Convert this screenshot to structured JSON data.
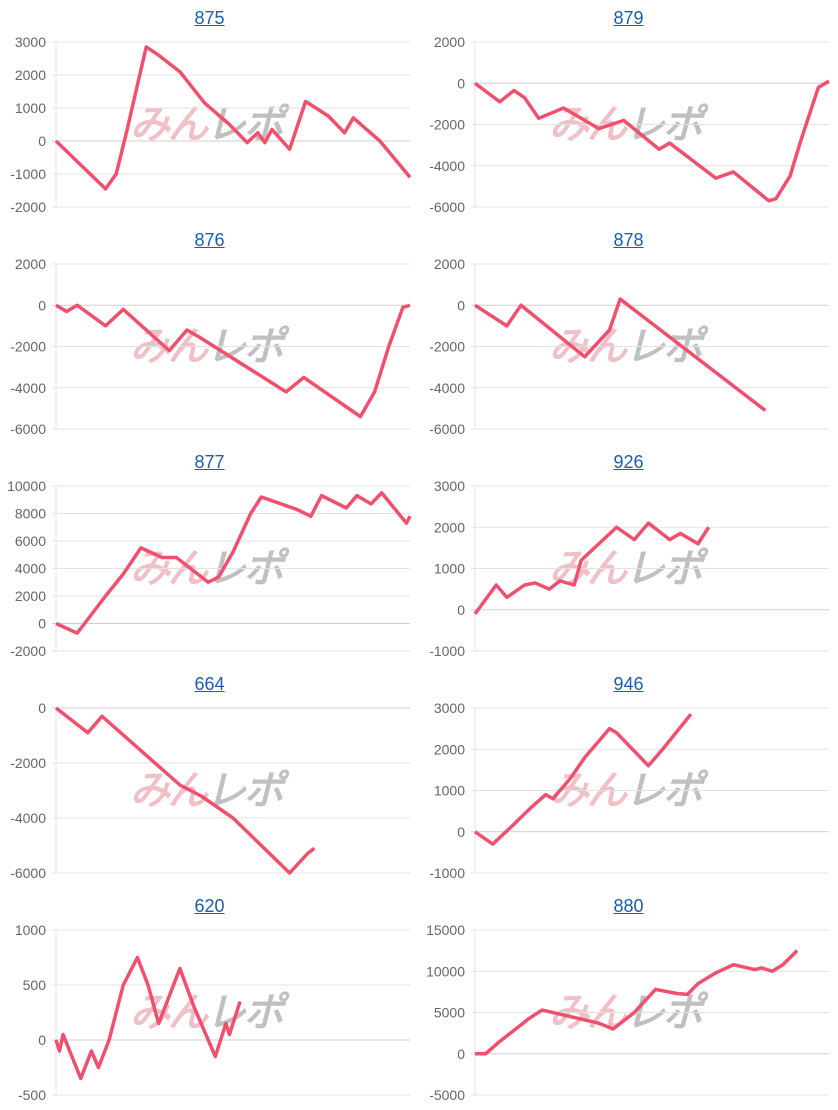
{
  "watermark": {
    "part1": "みん",
    "part2": "レポ"
  },
  "colors": {
    "line": "#f0506e",
    "title": "#1a5fa8",
    "grid": "#e3e3e3",
    "tick": "#666666"
  },
  "chart_data": [
    {
      "type": "line",
      "title": "875",
      "ylim": [
        -2000,
        3000
      ],
      "yticks": [
        3000,
        2000,
        1000,
        0,
        -1000,
        -2000
      ],
      "xlim": [
        0,
        100
      ],
      "grid": true,
      "x": [
        0,
        14,
        17,
        20,
        23,
        25.5,
        29,
        35,
        42,
        49,
        54,
        57,
        59,
        61,
        66,
        70.5,
        77,
        81.5,
        84,
        91.5,
        100
      ],
      "y": [
        0,
        -1450,
        -1000,
        300,
        1700,
        2850,
        2600,
        2100,
        1150,
        500,
        -50,
        250,
        -50,
        350,
        -250,
        1200,
        750,
        250,
        700,
        0,
        -1100
      ]
    },
    {
      "type": "line",
      "title": "879",
      "ylim": [
        -6000,
        2000
      ],
      "yticks": [
        2000,
        0,
        -2000,
        -4000,
        -6000
      ],
      "xlim": [
        0,
        100
      ],
      "grid": true,
      "x": [
        0,
        7,
        11,
        14,
        18,
        25,
        35,
        42,
        52,
        55,
        68,
        73,
        83,
        85,
        89,
        92,
        97,
        100
      ],
      "y": [
        0,
        -900,
        -350,
        -700,
        -1700,
        -1200,
        -2200,
        -1800,
        -3200,
        -2900,
        -4600,
        -4300,
        -5700,
        -5600,
        -4500,
        -2800,
        -200,
        100
      ]
    },
    {
      "type": "line",
      "title": "876",
      "ylim": [
        -6000,
        2000
      ],
      "yticks": [
        2000,
        0,
        -2000,
        -4000,
        -6000
      ],
      "xlim": [
        0,
        100
      ],
      "grid": true,
      "x": [
        0,
        3,
        6,
        14,
        19,
        32,
        37,
        41,
        65,
        70,
        86,
        90,
        94,
        98,
        100
      ],
      "y": [
        0,
        -300,
        0,
        -1000,
        -200,
        -2200,
        -1200,
        -1600,
        -4200,
        -3500,
        -5400,
        -4200,
        -2000,
        -100,
        0
      ]
    },
    {
      "type": "line",
      "title": "878",
      "ylim": [
        -6000,
        2000
      ],
      "yticks": [
        2000,
        0,
        -2000,
        -4000,
        -6000
      ],
      "xlim": [
        0,
        100
      ],
      "grid": true,
      "x": [
        0,
        9,
        13,
        31,
        38,
        41,
        82
      ],
      "y": [
        0,
        -1000,
        0,
        -2500,
        -1200,
        300,
        -5100
      ]
    },
    {
      "type": "line",
      "title": "877",
      "ylim": [
        -2000,
        10000
      ],
      "yticks": [
        10000,
        8000,
        6000,
        4000,
        2000,
        0,
        -2000
      ],
      "xlim": [
        0,
        100
      ],
      "grid": true,
      "x": [
        0,
        6,
        14,
        19,
        24,
        30,
        34,
        38,
        43,
        46,
        50,
        55,
        58,
        68,
        72,
        75,
        82,
        85,
        89,
        92,
        99,
        100
      ],
      "y": [
        0,
        -700,
        2000,
        3600,
        5500,
        4800,
        4800,
        4000,
        3000,
        3400,
        5200,
        8000,
        9200,
        8300,
        7800,
        9300,
        8400,
        9300,
        8700,
        9500,
        7300,
        7800
      ]
    },
    {
      "type": "line",
      "title": "926",
      "ylim": [
        -1000,
        3000
      ],
      "yticks": [
        3000,
        2000,
        1000,
        0,
        -1000
      ],
      "xlim": [
        0,
        100
      ],
      "grid": true,
      "x": [
        0,
        6,
        9,
        14,
        17,
        21,
        24,
        28,
        30,
        40,
        45,
        49,
        55,
        58,
        63,
        66
      ],
      "y": [
        -100,
        600,
        300,
        600,
        650,
        500,
        700,
        600,
        1200,
        2000,
        1700,
        2100,
        1700,
        1850,
        1600,
        2000
      ]
    },
    {
      "type": "line",
      "title": "664",
      "ylim": [
        -6000,
        0
      ],
      "yticks": [
        0,
        -2000,
        -4000,
        -6000
      ],
      "xlim": [
        0,
        100
      ],
      "grid": true,
      "x": [
        0,
        9,
        13,
        35,
        41,
        50,
        66,
        71,
        73
      ],
      "y": [
        0,
        -900,
        -300,
        -2800,
        -3200,
        -4000,
        -6000,
        -5300,
        -5100
      ]
    },
    {
      "type": "line",
      "title": "946",
      "ylim": [
        -1000,
        3000
      ],
      "yticks": [
        3000,
        2000,
        1000,
        0,
        -1000
      ],
      "xlim": [
        0,
        100
      ],
      "grid": true,
      "x": [
        0,
        5,
        10,
        16,
        20,
        22,
        27,
        31,
        38,
        40,
        49,
        53,
        61
      ],
      "y": [
        0,
        -300,
        100,
        600,
        900,
        800,
        1300,
        1800,
        2500,
        2400,
        1600,
        2000,
        2850
      ]
    },
    {
      "type": "line",
      "title": "620",
      "ylim": [
        -500,
        1000
      ],
      "yticks": [
        1000,
        500,
        0,
        -500
      ],
      "xlim": [
        0,
        100
      ],
      "grid": true,
      "x": [
        0,
        1,
        2,
        7,
        10,
        12,
        15,
        19,
        23,
        26,
        29,
        35,
        39,
        45,
        48,
        49,
        52
      ],
      "y": [
        0,
        -100,
        50,
        -350,
        -100,
        -250,
        0,
        500,
        750,
        500,
        150,
        650,
        300,
        -150,
        150,
        50,
        350
      ]
    },
    {
      "type": "line",
      "title": "880",
      "ylim": [
        -5000,
        15000
      ],
      "yticks": [
        15000,
        10000,
        5000,
        0,
        -5000
      ],
      "xlim": [
        0,
        100
      ],
      "grid": true,
      "x": [
        0,
        3,
        7,
        13,
        15,
        19,
        27,
        35,
        39,
        45,
        51,
        57,
        60,
        63,
        68,
        73,
        79,
        81,
        84,
        87,
        91
      ],
      "y": [
        0,
        0,
        1500,
        3500,
        4200,
        5300,
        4500,
        3700,
        3000,
        5000,
        7800,
        7300,
        7200,
        8500,
        9800,
        10800,
        10200,
        10400,
        10000,
        10800,
        12500
      ]
    }
  ]
}
